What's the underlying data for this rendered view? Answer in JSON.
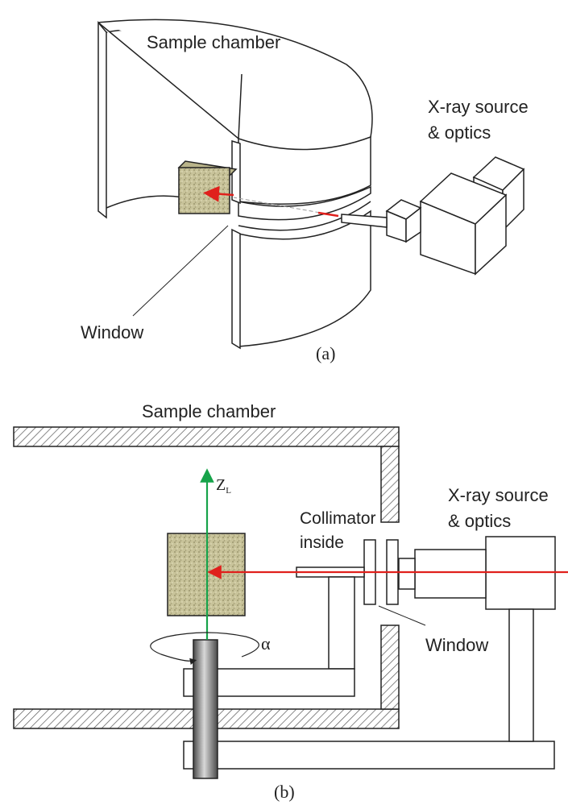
{
  "panel_a": {
    "caption": "(a)",
    "chamber_label": "Sample chamber",
    "source_label_line1": "X-ray source",
    "source_label_line2": "& optics",
    "window_label": "Window"
  },
  "panel_b": {
    "caption": "(b)",
    "chamber_label": "Sample chamber",
    "source_label_line1": "X-ray source",
    "source_label_line2": "& optics",
    "window_label": "Window",
    "collimator_line1": "Collimator",
    "collimator_line2": "inside",
    "axis_label": "Z",
    "axis_subscript": "L",
    "rotation_label": "α"
  },
  "colors": {
    "beam": "#e0201c",
    "axis": "#16a34a",
    "sample": "#c8c39a",
    "outline": "#222222"
  }
}
